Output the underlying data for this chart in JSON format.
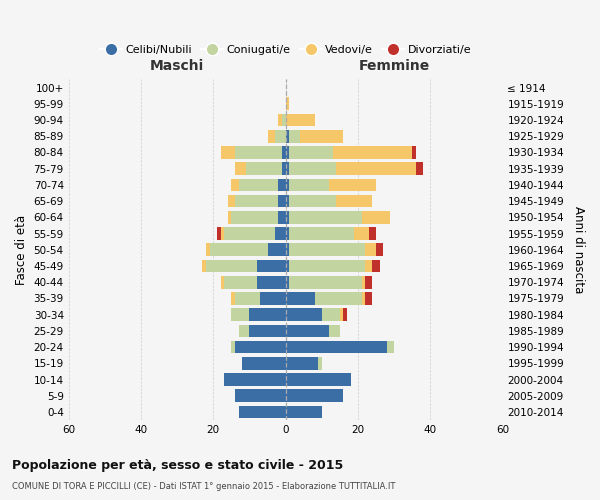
{
  "age_groups": [
    "0-4",
    "5-9",
    "10-14",
    "15-19",
    "20-24",
    "25-29",
    "30-34",
    "35-39",
    "40-44",
    "45-49",
    "50-54",
    "55-59",
    "60-64",
    "65-69",
    "70-74",
    "75-79",
    "80-84",
    "85-89",
    "90-94",
    "95-99",
    "100+"
  ],
  "birth_years": [
    "2010-2014",
    "2005-2009",
    "2000-2004",
    "1995-1999",
    "1990-1994",
    "1985-1989",
    "1980-1984",
    "1975-1979",
    "1970-1974",
    "1965-1969",
    "1960-1964",
    "1955-1959",
    "1950-1954",
    "1945-1949",
    "1940-1944",
    "1935-1939",
    "1930-1934",
    "1925-1929",
    "1920-1924",
    "1915-1919",
    "≤ 1914"
  ],
  "maschi": {
    "celibi": [
      13,
      14,
      17,
      12,
      14,
      10,
      10,
      7,
      8,
      8,
      5,
      3,
      2,
      2,
      2,
      1,
      1,
      0,
      0,
      0,
      0
    ],
    "coniugati": [
      0,
      0,
      0,
      0,
      1,
      3,
      5,
      7,
      9,
      14,
      16,
      14,
      13,
      12,
      11,
      10,
      13,
      3,
      1,
      0,
      0
    ],
    "vedovi": [
      0,
      0,
      0,
      0,
      0,
      0,
      0,
      1,
      1,
      1,
      1,
      1,
      1,
      2,
      2,
      3,
      4,
      2,
      1,
      0,
      0
    ],
    "divorziati": [
      0,
      0,
      0,
      0,
      0,
      0,
      0,
      0,
      0,
      0,
      0,
      1,
      0,
      0,
      0,
      0,
      0,
      0,
      0,
      0,
      0
    ]
  },
  "femmine": {
    "nubili": [
      10,
      16,
      18,
      9,
      28,
      12,
      10,
      8,
      1,
      1,
      1,
      1,
      1,
      1,
      1,
      1,
      1,
      1,
      0,
      0,
      0
    ],
    "coniugate": [
      0,
      0,
      0,
      1,
      2,
      3,
      5,
      13,
      20,
      21,
      21,
      18,
      20,
      13,
      11,
      13,
      12,
      3,
      0,
      0,
      0
    ],
    "vedove": [
      0,
      0,
      0,
      0,
      0,
      0,
      1,
      1,
      1,
      2,
      3,
      4,
      8,
      10,
      13,
      22,
      22,
      12,
      8,
      1,
      0
    ],
    "divorziate": [
      0,
      0,
      0,
      0,
      0,
      0,
      1,
      2,
      2,
      2,
      2,
      2,
      0,
      0,
      0,
      2,
      1,
      0,
      0,
      0,
      0
    ]
  },
  "colors": {
    "celibi": "#3a6ea5",
    "coniugati": "#c2d4a0",
    "vedovi": "#f5c769",
    "divorziati": "#c0312b"
  },
  "xlim": [
    -60,
    60
  ],
  "title": "Popolazione per età, sesso e stato civile - 2015",
  "subtitle": "COMUNE DI TORA E PICCILLI (CE) - Dati ISTAT 1° gennaio 2015 - Elaborazione TUTTITALIA.IT",
  "xlabel_left": "Maschi",
  "xlabel_right": "Femmine",
  "ylabel_left": "Fasce di età",
  "ylabel_right": "Anni di nascita",
  "legend_labels": [
    "Celibi/Nubili",
    "Coniugati/e",
    "Vedovi/e",
    "Divorziati/e"
  ],
  "bg_color": "#f5f5f5",
  "grid_color": "#cccccc"
}
